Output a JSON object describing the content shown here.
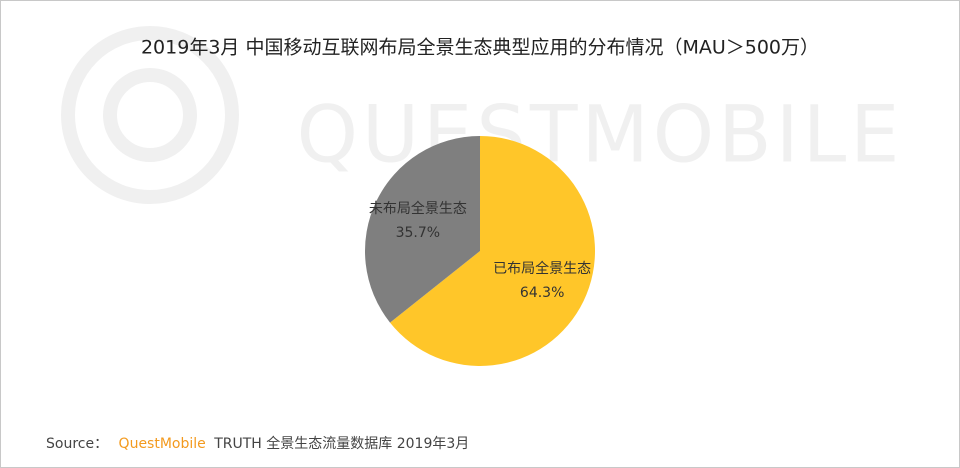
{
  "chart_data": {
    "type": "pie",
    "title": "2019年3月 中国移动互联网布局全景生态典型应用的分布情况（MAU＞500万）",
    "watermark": "QUESTMOBILE",
    "categories": [
      "已布局全景生态",
      "未布局全景生态"
    ],
    "values": [
      64.3,
      35.7
    ],
    "value_labels": [
      "64.3%",
      "35.7%"
    ],
    "colors": [
      "#FFC629",
      "#7F7F7F"
    ],
    "source": {
      "label": "Source：",
      "brand": "QuestMobile",
      "text": "TRUTH 全景生态流量数据库 2019年3月"
    }
  }
}
